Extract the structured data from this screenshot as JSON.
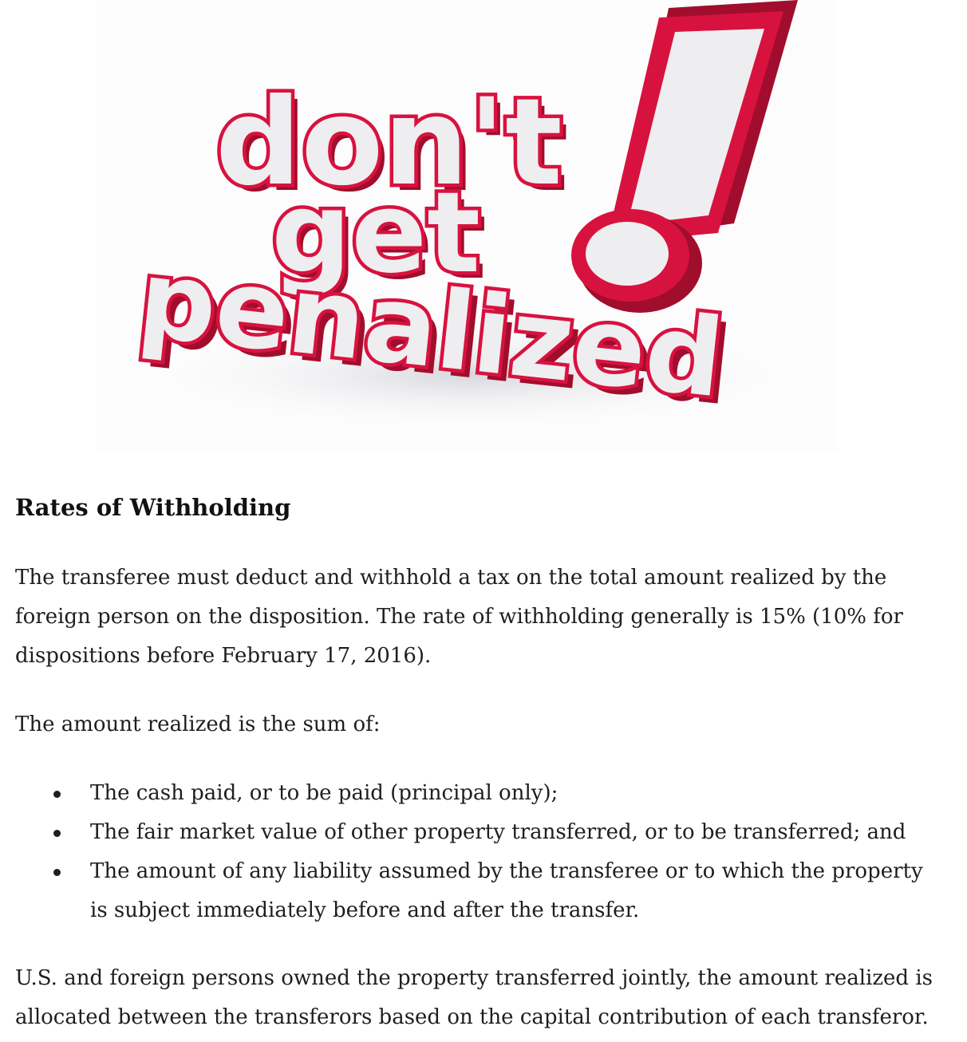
{
  "hero": {
    "line1": "don't",
    "line2": "get",
    "line3": "penalized",
    "exclamation": "!",
    "colors": {
      "red": "#d8123f",
      "dark_red": "#a10d2d",
      "face": "#eeeef0"
    }
  },
  "article": {
    "heading": "Rates of Withholding",
    "paragraph1": "The transferee must deduct and withhold a tax on the total amount realized by the foreign person on the disposition. The rate of withholding generally is 15% (10% for dispositions before February 17, 2016).",
    "paragraph2": "The amount realized is the sum of:",
    "bullets": [
      "The cash paid, or to be paid (principal only);",
      "The fair market value of other property transferred, or to be transferred; and",
      "The amount of any liability assumed by the transferee or to which the property is subject immediately before and after the transfer."
    ],
    "paragraph3": "U.S. and foreign persons owned the property transferred jointly, the amount realized is allocated between the transferors based on the capital contribution of each transferor."
  }
}
